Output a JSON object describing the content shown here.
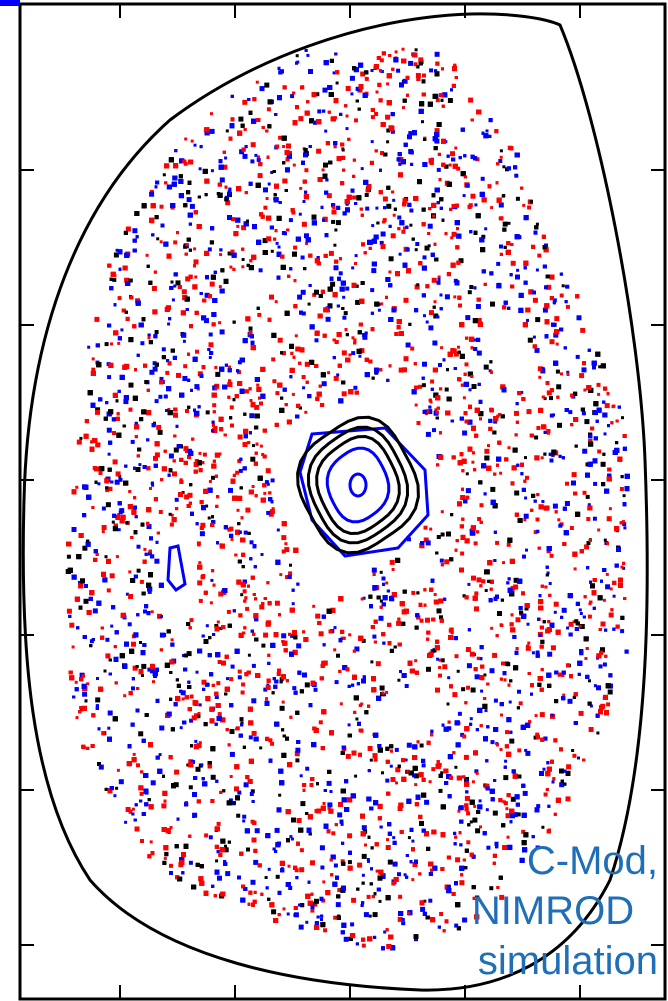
{
  "chart_data": {
    "type": "scatter",
    "title": "",
    "xlabel": "",
    "ylabel": "",
    "xlim": [
      0,
      1
    ],
    "ylim": [
      0,
      1
    ],
    "grid": false,
    "legend": "none",
    "description_series": [
      {
        "color": "#ff0000"
      },
      {
        "color": "#0000ff"
      },
      {
        "color": "#000000"
      }
    ]
  },
  "annotation": {
    "line1": "C-Mod,",
    "line2": "NIMROD",
    "line3": "simulation",
    "color": "#1f6fb8"
  },
  "colors": {
    "axes": "#000000",
    "separatrix": "#000000",
    "red": "#ff0000",
    "blue": "#0000ff",
    "black": "#000000"
  }
}
